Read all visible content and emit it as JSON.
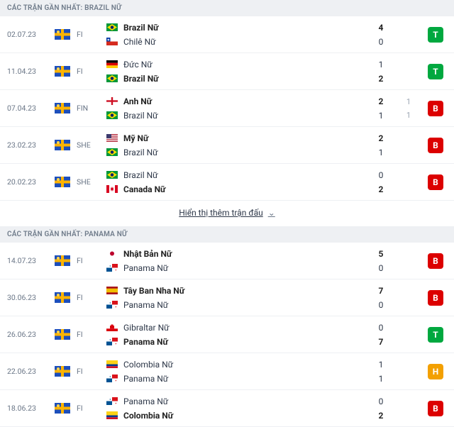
{
  "colors": {
    "T": "#00a83f",
    "B": "#dc0000",
    "H": "#f3a000",
    "header_bg": "#eef0f3",
    "row_border": "#eef0f3",
    "text_muted": "#697586"
  },
  "icons": {
    "comp_flag": "globe-flag-icon"
  },
  "sections": [
    {
      "title": "CÁC TRẬN GẦN NHẤT: BRAZIL NỮ",
      "show_more": "Hiển thị thêm trận đấu",
      "matches": [
        {
          "date": "02.07.23",
          "comp": "FI",
          "team1": {
            "name": "Brazil Nữ",
            "flag": "brazil",
            "bold": true
          },
          "team2": {
            "name": "Chilê Nữ",
            "flag": "chile",
            "bold": false
          },
          "score1": "4",
          "score2": "0",
          "bold1": true,
          "bold2": false,
          "extra1": "",
          "extra2": "",
          "result": "T"
        },
        {
          "date": "11.04.23",
          "comp": "FI",
          "team1": {
            "name": "Đức Nữ",
            "flag": "germany",
            "bold": false
          },
          "team2": {
            "name": "Brazil Nữ",
            "flag": "brazil",
            "bold": true
          },
          "score1": "1",
          "score2": "2",
          "bold1": false,
          "bold2": true,
          "extra1": "",
          "extra2": "",
          "result": "T"
        },
        {
          "date": "07.04.23",
          "comp": "FIN",
          "team1": {
            "name": "Anh Nữ",
            "flag": "england",
            "bold": true
          },
          "team2": {
            "name": "Brazil Nữ",
            "flag": "brazil",
            "bold": false
          },
          "score1": "2",
          "score2": "1",
          "bold1": true,
          "bold2": false,
          "extra1": "1",
          "extra2": "1",
          "result": "B"
        },
        {
          "date": "23.02.23",
          "comp": "SHE",
          "team1": {
            "name": "Mỹ Nữ",
            "flag": "usa",
            "bold": true
          },
          "team2": {
            "name": "Brazil Nữ",
            "flag": "brazil",
            "bold": false
          },
          "score1": "2",
          "score2": "1",
          "bold1": true,
          "bold2": false,
          "extra1": "",
          "extra2": "",
          "result": "B"
        },
        {
          "date": "20.02.23",
          "comp": "SHE",
          "team1": {
            "name": "Brazil Nữ",
            "flag": "brazil",
            "bold": false
          },
          "team2": {
            "name": "Canada Nữ",
            "flag": "canada",
            "bold": true
          },
          "score1": "0",
          "score2": "2",
          "bold1": false,
          "bold2": true,
          "extra1": "",
          "extra2": "",
          "result": "B"
        }
      ]
    },
    {
      "title": "CÁC TRẬN GẦN NHẤT: PANAMA NỮ",
      "show_more": "",
      "matches": [
        {
          "date": "14.07.23",
          "comp": "FI",
          "team1": {
            "name": "Nhật Bản Nữ",
            "flag": "japan",
            "bold": true
          },
          "team2": {
            "name": "Panama Nữ",
            "flag": "panama",
            "bold": false
          },
          "score1": "5",
          "score2": "0",
          "bold1": true,
          "bold2": false,
          "extra1": "",
          "extra2": "",
          "result": "B"
        },
        {
          "date": "30.06.23",
          "comp": "FI",
          "team1": {
            "name": "Tây Ban Nha Nữ",
            "flag": "spain",
            "bold": true
          },
          "team2": {
            "name": "Panama Nữ",
            "flag": "panama",
            "bold": false
          },
          "score1": "7",
          "score2": "0",
          "bold1": true,
          "bold2": false,
          "extra1": "",
          "extra2": "",
          "result": "B"
        },
        {
          "date": "26.06.23",
          "comp": "FI",
          "team1": {
            "name": "Gibraltar Nữ",
            "flag": "gibraltar",
            "bold": false
          },
          "team2": {
            "name": "Panama Nữ",
            "flag": "panama",
            "bold": true
          },
          "score1": "0",
          "score2": "7",
          "bold1": false,
          "bold2": true,
          "extra1": "",
          "extra2": "",
          "result": "T"
        },
        {
          "date": "22.06.23",
          "comp": "FI",
          "team1": {
            "name": "Colombia Nữ",
            "flag": "colombia",
            "bold": false
          },
          "team2": {
            "name": "Panama Nữ",
            "flag": "panama",
            "bold": false
          },
          "score1": "1",
          "score2": "1",
          "bold1": false,
          "bold2": false,
          "extra1": "",
          "extra2": "",
          "result": "H"
        },
        {
          "date": "18.06.23",
          "comp": "FI",
          "team1": {
            "name": "Panama Nữ",
            "flag": "panama",
            "bold": false
          },
          "team2": {
            "name": "Colombia Nữ",
            "flag": "colombia",
            "bold": true
          },
          "score1": "0",
          "score2": "2",
          "bold1": false,
          "bold2": true,
          "extra1": "",
          "extra2": "",
          "result": "B"
        }
      ]
    }
  ]
}
